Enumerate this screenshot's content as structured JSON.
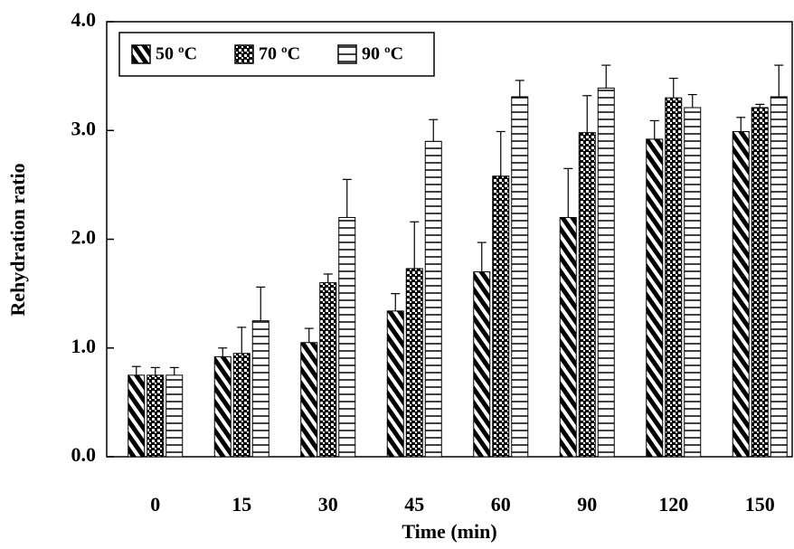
{
  "chart_data": {
    "type": "bar",
    "x_label": "Time (min)",
    "y_label": "Rehydration ratio",
    "categories": [
      "0",
      "15",
      "30",
      "45",
      "60",
      "90",
      "120",
      "150"
    ],
    "series": [
      {
        "name": "50 ºC",
        "color": "#000000",
        "pattern": "diagonal",
        "values": [
          0.75,
          0.92,
          1.05,
          1.34,
          1.7,
          2.2,
          2.92,
          2.99
        ],
        "errors": [
          0.08,
          0.08,
          0.13,
          0.16,
          0.27,
          0.45,
          0.17,
          0.13
        ]
      },
      {
        "name": "70 ºC",
        "color": "#000000",
        "pattern": "checker",
        "values": [
          0.75,
          0.95,
          1.6,
          1.73,
          2.58,
          2.98,
          3.3,
          3.21
        ],
        "errors": [
          0.07,
          0.24,
          0.08,
          0.43,
          0.41,
          0.34,
          0.18,
          0.03
        ]
      },
      {
        "name": "90 ºC",
        "color": "#000000",
        "pattern": "grid",
        "values": [
          0.75,
          1.25,
          2.2,
          2.9,
          3.31,
          3.39,
          3.21,
          3.31
        ],
        "errors": [
          0.07,
          0.31,
          0.35,
          0.2,
          0.15,
          0.21,
          0.12,
          0.29
        ]
      }
    ],
    "ylim": [
      0,
      4
    ],
    "yticks": [
      {
        "value": 0,
        "label": "0.0"
      },
      {
        "value": 1,
        "label": "1.0"
      },
      {
        "value": 2,
        "label": "2.0"
      },
      {
        "value": 3,
        "label": "3.0"
      },
      {
        "value": 4,
        "label": "4.0"
      }
    ],
    "legend": "upper left"
  }
}
